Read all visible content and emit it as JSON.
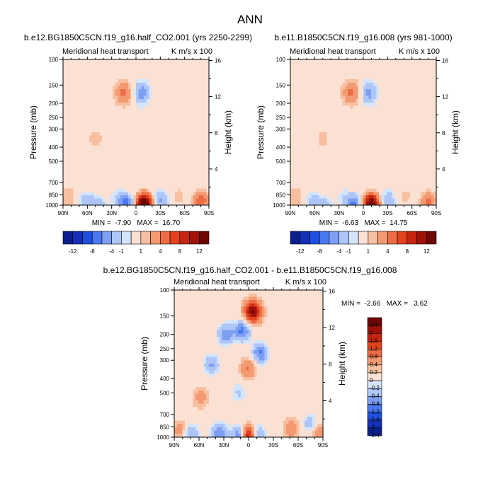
{
  "figure": {
    "title": "ANN"
  },
  "colors": {
    "bg": "#ffffff",
    "top_scale": [
      "#0b1f8c",
      "#1530b5",
      "#1f4fe0",
      "#4a78ee",
      "#7d9ff3",
      "#aec6f7",
      "#d4e5fb",
      "#fbe1d3",
      "#f8c0a1",
      "#f39a72",
      "#ee6c45",
      "#e3421f",
      "#c52510",
      "#9e1209",
      "#6e0704"
    ],
    "diff_scale": [
      "#0b1f8c",
      "#1530b5",
      "#1f4fe0",
      "#4a78ee",
      "#7d9ff3",
      "#aec6f7",
      "#d4e5fb",
      "#fbe1d3",
      "#f8c0a1",
      "#f39a72",
      "#ee6c45",
      "#e3421f",
      "#c52510",
      "#9e1209",
      "#6e0704"
    ]
  },
  "common": {
    "subtitle_left": "Meridional heat transport",
    "units": "K m/s x 100",
    "ylabel": "Pressure (mb)",
    "ylabel_right": "Height (km)"
  },
  "chart_data": [
    {
      "type": "heatmap",
      "id": "p1",
      "title": "b.e12.BG1850C5CN.f19_g16.half_CO2.001 (yrs 2250-2299)",
      "subtitle_left": "Meridional heat transport",
      "units": "K m/s x 100",
      "min_max_text": "MIN =  -7.90   MAX =  16.70",
      "min": -7.9,
      "max": 16.7,
      "xlabel": "",
      "ylabel": "Pressure (mb)",
      "ylabel_right": "Height (km)",
      "x_ticks": [
        "90N",
        "60N",
        "30N",
        "0",
        "30S",
        "60S",
        "90S"
      ],
      "y_ticks": [
        "100",
        "150",
        "200",
        "250",
        "300",
        "400",
        "500",
        "700",
        "850",
        "1000"
      ],
      "y2_ticks": [
        "16",
        "12",
        "8",
        "4"
      ],
      "ylim": [
        1000,
        100
      ],
      "colorbar_labels": [
        "-12",
        "-8",
        "-4",
        "-1",
        "1",
        "4",
        "8",
        "12"
      ],
      "features": [
        {
          "lat": 82,
          "p": 880,
          "v": 1.5
        },
        {
          "lat": 62,
          "p": 930,
          "v": -3.5
        },
        {
          "lat": 45,
          "p": 980,
          "v": -4
        },
        {
          "lat": 40,
          "p": 880,
          "v": 1.2
        },
        {
          "lat": 26,
          "p": 880,
          "v": -2
        },
        {
          "lat": 12,
          "p": 980,
          "v": -7.9
        },
        {
          "lat": -10,
          "p": 980,
          "v": 16.7
        },
        {
          "lat": -30,
          "p": 940,
          "v": -4
        },
        {
          "lat": -52,
          "p": 870,
          "v": 2
        },
        {
          "lat": -80,
          "p": 940,
          "v": 6
        },
        {
          "lat": 15,
          "p": 170,
          "v": 4
        },
        {
          "lat": -7,
          "p": 170,
          "v": -5
        },
        {
          "lat": -24,
          "p": 170,
          "v": 1
        },
        {
          "lat": 50,
          "p": 350,
          "v": 0.9
        }
      ]
    },
    {
      "type": "heatmap",
      "id": "p2",
      "title": "b.e11.B1850C5CN.f19_g16.008 (yrs 981-1000)",
      "subtitle_left": "Meridional heat transport",
      "units": "K m/s x 100",
      "min_max_text": "MIN =  -6.63   MAX =  14.75",
      "min": -6.63,
      "max": 14.75,
      "xlabel": "",
      "ylabel": "Pressure (mb)",
      "ylabel_right": "Height (km)",
      "x_ticks": [
        "90N",
        "60N",
        "30N",
        "0",
        "30S",
        "60S",
        "90S"
      ],
      "y_ticks": [
        "100",
        "150",
        "200",
        "250",
        "300",
        "400",
        "500",
        "700",
        "850",
        "1000"
      ],
      "y2_ticks": [
        "16",
        "12",
        "8",
        "4"
      ],
      "ylim": [
        1000,
        100
      ],
      "colorbar_labels": [
        "-12",
        "-8",
        "-4",
        "-1",
        "1",
        "4",
        "8",
        "12"
      ],
      "features": [
        {
          "lat": 82,
          "p": 880,
          "v": 1.5
        },
        {
          "lat": 62,
          "p": 930,
          "v": -3.2
        },
        {
          "lat": 45,
          "p": 980,
          "v": -3.5
        },
        {
          "lat": 40,
          "p": 880,
          "v": 1.2
        },
        {
          "lat": 26,
          "p": 880,
          "v": -2
        },
        {
          "lat": 12,
          "p": 980,
          "v": -6.6
        },
        {
          "lat": -10,
          "p": 980,
          "v": 14.7
        },
        {
          "lat": -30,
          "p": 940,
          "v": -3.6
        },
        {
          "lat": -52,
          "p": 870,
          "v": 1.8
        },
        {
          "lat": -80,
          "p": 940,
          "v": 5
        },
        {
          "lat": 15,
          "p": 170,
          "v": 4
        },
        {
          "lat": -7,
          "p": 170,
          "v": -4.5
        },
        {
          "lat": -24,
          "p": 170,
          "v": 1
        },
        {
          "lat": 50,
          "p": 350,
          "v": 0.8
        }
      ]
    },
    {
      "type": "heatmap",
      "id": "p3",
      "title": "b.e12.BG1850C5CN.f19_g16.half_CO2.001 - b.e11.B1850C5CN.f19_g16.008",
      "subtitle_left": "Meridional heat transport",
      "units": "K m/s x 100",
      "min_max_text": "MIN =  -2.66   MAX =   3.62",
      "min": -2.66,
      "max": 3.62,
      "xlabel": "",
      "ylabel": "Pressure (mb)",
      "ylabel_right": "Height (km)",
      "x_ticks": [
        "90N",
        "60N",
        "30N",
        "0",
        "30S",
        "60S",
        "90S"
      ],
      "y_ticks": [
        "100",
        "150",
        "200",
        "250",
        "300",
        "400",
        "500",
        "700",
        "850",
        "1000"
      ],
      "y2_ticks": [
        "16",
        "12",
        "8",
        "4"
      ],
      "ylim": [
        1000,
        100
      ],
      "colorbar_labels": [
        "2.4",
        "2",
        "1.6",
        "1.2",
        "0.8",
        "0.4",
        "0.2",
        "0",
        "-0.2",
        "-0.4",
        "-0.8",
        "-1.2",
        "-1.6",
        "-2",
        "-2.4"
      ],
      "features": [
        {
          "lat": -5,
          "p": 140,
          "v": 2.5
        },
        {
          "lat": 8,
          "p": 190,
          "v": -1.4
        },
        {
          "lat": 28,
          "p": 200,
          "v": -1.1
        },
        {
          "lat": -14,
          "p": 270,
          "v": -1.3
        },
        {
          "lat": 0,
          "p": 340,
          "v": 0.8
        },
        {
          "lat": 45,
          "p": 320,
          "v": -0.9
        },
        {
          "lat": 12,
          "p": 500,
          "v": -0.5
        },
        {
          "lat": 58,
          "p": 540,
          "v": 0.5
        },
        {
          "lat": 82,
          "p": 900,
          "v": 0.6
        },
        {
          "lat": 70,
          "p": 940,
          "v": -0.9
        },
        {
          "lat": 35,
          "p": 940,
          "v": -1.2
        },
        {
          "lat": 8,
          "p": 975,
          "v": -2.66
        },
        {
          "lat": 2,
          "p": 975,
          "v": 3.62
        },
        {
          "lat": -10,
          "p": 970,
          "v": -1.2
        },
        {
          "lat": -52,
          "p": 880,
          "v": 0.6
        },
        {
          "lat": -75,
          "p": 820,
          "v": -0.8
        },
        {
          "lat": -84,
          "p": 920,
          "v": 0.8
        }
      ]
    }
  ]
}
